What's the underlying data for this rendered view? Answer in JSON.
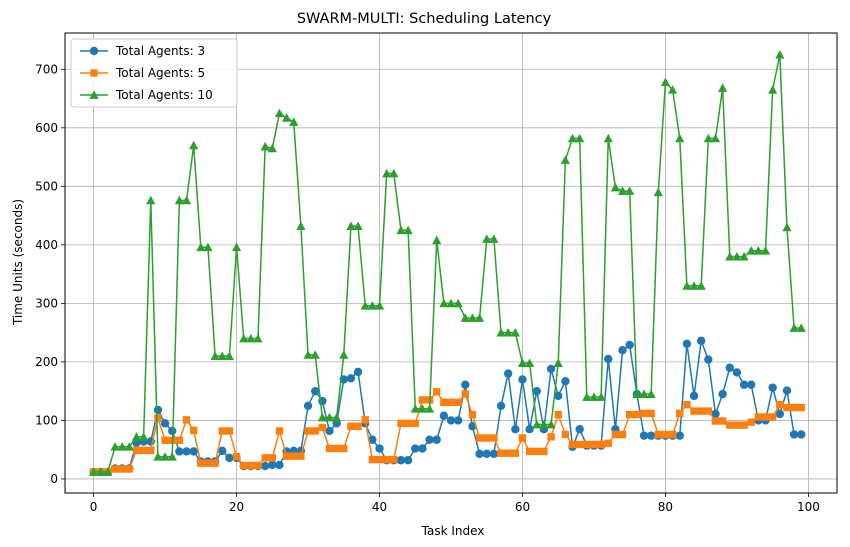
{
  "chart_data": {
    "type": "line",
    "title": "SWARM-MULTI: Scheduling Latency",
    "xlabel": "Task Index",
    "ylabel": "Time Units (seconds)",
    "xlim": [
      -4,
      104
    ],
    "ylim": [
      -24,
      762
    ],
    "xticks": [
      0,
      20,
      40,
      60,
      80,
      100
    ],
    "yticks": [
      0,
      100,
      200,
      300,
      400,
      500,
      600,
      700
    ],
    "grid": true,
    "legend_position": "top-left",
    "series": [
      {
        "name": "Total Agents: 3",
        "color": "#1f77b4",
        "marker": "circle",
        "values": [
          12,
          12,
          12,
          18,
          18,
          18,
          62,
          64,
          64,
          118,
          95,
          82,
          47,
          47,
          47,
          30,
          30,
          30,
          48,
          36,
          36,
          22,
          22,
          22,
          22,
          24,
          24,
          47,
          48,
          48,
          125,
          150,
          133,
          82,
          95,
          170,
          172,
          183,
          95,
          67,
          52,
          32,
          32,
          32,
          32,
          52,
          52,
          67,
          67,
          108,
          100,
          100,
          161,
          90,
          43,
          43,
          43,
          125,
          180,
          85,
          170,
          85,
          150,
          85,
          188,
          142,
          167,
          55,
          85,
          57,
          57,
          57,
          205,
          85,
          220,
          229,
          145,
          74,
          74,
          74,
          74,
          74,
          74,
          231,
          142,
          236,
          204,
          111,
          145,
          190,
          182,
          161,
          161,
          100,
          100,
          156,
          111,
          151,
          76,
          76
        ]
      },
      {
        "name": "Total Agents: 5",
        "color": "#ff7f0e",
        "marker": "square",
        "values": [
          12,
          12,
          12,
          17,
          17,
          17,
          49,
          49,
          49,
          104,
          66,
          66,
          66,
          101,
          83,
          27,
          27,
          27,
          82,
          82,
          38,
          23,
          23,
          23,
          36,
          36,
          82,
          39,
          39,
          39,
          82,
          82,
          88,
          52,
          52,
          52,
          90,
          90,
          101,
          33,
          33,
          33,
          33,
          95,
          95,
          95,
          135,
          135,
          149,
          131,
          131,
          131,
          145,
          110,
          70,
          70,
          70,
          44,
          44,
          44,
          70,
          47,
          47,
          47,
          72,
          110,
          76,
          59,
          59,
          59,
          59,
          59,
          61,
          76,
          76,
          110,
          110,
          112,
          112,
          76,
          76,
          76,
          112,
          127,
          116,
          116,
          116,
          99,
          99,
          92,
          92,
          92,
          97,
          106,
          106,
          106,
          127,
          122,
          122,
          122
        ]
      },
      {
        "name": "Total Agents: 10",
        "color": "#2ca02c",
        "marker": "triangle",
        "values": [
          12,
          12,
          12,
          55,
          55,
          55,
          72,
          72,
          476,
          38,
          38,
          38,
          476,
          476,
          570,
          396,
          396,
          210,
          210,
          210,
          396,
          240,
          240,
          240,
          568,
          565,
          625,
          617,
          610,
          432,
          212,
          212,
          105,
          105,
          105,
          212,
          432,
          432,
          296,
          296,
          296,
          522,
          522,
          425,
          425,
          120,
          120,
          120,
          408,
          300,
          300,
          300,
          275,
          275,
          275,
          410,
          410,
          250,
          250,
          250,
          198,
          198,
          93,
          93,
          93,
          198,
          545,
          582,
          582,
          140,
          140,
          140,
          582,
          498,
          492,
          492,
          145,
          145,
          145,
          490,
          678,
          665,
          582,
          330,
          330,
          330,
          582,
          582,
          668,
          380,
          380,
          380,
          390,
          390,
          390,
          665,
          725,
          430,
          258,
          258
        ]
      }
    ]
  }
}
